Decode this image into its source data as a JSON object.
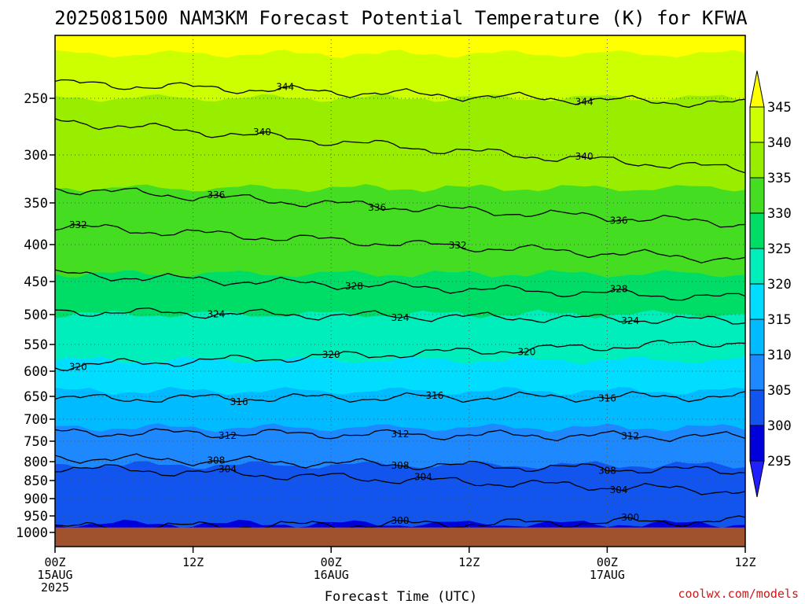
{
  "header": {
    "title": "2025081500 NAM3KM Forecast Potential Temperature (K) for KFWA"
  },
  "footer": {
    "credit": "coolwx.com/models"
  },
  "chart_data": {
    "type": "heatmap",
    "title": "2025081500 NAM3KM Forecast Potential Temperature (K) for KFWA",
    "xlabel": "Forecast Time (UTC)",
    "ylabel": "",
    "x_ticks": [
      {
        "hour": 0,
        "label": "00Z",
        "sub1": "15AUG",
        "sub2": "2025"
      },
      {
        "hour": 12,
        "label": "12Z",
        "sub1": "",
        "sub2": ""
      },
      {
        "hour": 24,
        "label": "00Z",
        "sub1": "16AUG",
        "sub2": ""
      },
      {
        "hour": 36,
        "label": "12Z",
        "sub1": "",
        "sub2": ""
      },
      {
        "hour": 48,
        "label": "00Z",
        "sub1": "17AUG",
        "sub2": ""
      },
      {
        "hour": 60,
        "label": "12Z",
        "sub1": "",
        "sub2": ""
      }
    ],
    "xlim": [
      0,
      60
    ],
    "y_ticks": [
      "250",
      "300",
      "350",
      "400",
      "450",
      "500",
      "550",
      "600",
      "650",
      "700",
      "750",
      "800",
      "850",
      "900",
      "950",
      "1000"
    ],
    "y_tick_values": [
      250,
      300,
      350,
      400,
      450,
      500,
      550,
      600,
      650,
      700,
      750,
      800,
      850,
      900,
      950,
      1000
    ],
    "ylim": [
      200,
      1000
    ],
    "ground_pressure": 985,
    "colorbar": {
      "levels": [
        "345",
        "340",
        "335",
        "330",
        "325",
        "320",
        "315",
        "310",
        "305",
        "300",
        "295"
      ],
      "colors": [
        "#ffff00",
        "#ccff00",
        "#99ee00",
        "#44dd22",
        "#00dd66",
        "#00eebb",
        "#00ddff",
        "#00bbff",
        "#1e88ff",
        "#1155ee",
        "#0000dd",
        "#2020ff"
      ]
    },
    "bands": [
      {
        "top": 200,
        "color": "#ffff00"
      },
      {
        "top": 215,
        "color": "#ccff00"
      },
      {
        "top": 250,
        "color": "#99ee00"
      },
      {
        "top": 335,
        "color": "#44dd22"
      },
      {
        "top": 440,
        "color": "#00dd66"
      },
      {
        "top": 500,
        "color": "#00eebb"
      },
      {
        "top": 580,
        "color": "#00ddff"
      },
      {
        "top": 640,
        "color": "#00bbff"
      },
      {
        "top": 720,
        "color": "#1e88ff"
      },
      {
        "top": 810,
        "color": "#1155ee"
      },
      {
        "top": 975,
        "color": "#0000dd"
      }
    ],
    "contours": [
      {
        "value": "344",
        "p_start": 238,
        "p_end": 255,
        "labels": [
          {
            "hour": 20,
            "text": "344"
          },
          {
            "hour": 46,
            "text": "344"
          }
        ]
      },
      {
        "value": "340",
        "p_start": 270,
        "p_end": 315,
        "labels": [
          {
            "hour": 18,
            "text": "340"
          },
          {
            "hour": 46,
            "text": "340"
          }
        ]
      },
      {
        "value": "336",
        "p_start": 335,
        "p_end": 375,
        "labels": [
          {
            "hour": 14,
            "text": "336"
          },
          {
            "hour": 28,
            "text": "336"
          },
          {
            "hour": 49,
            "text": "336"
          }
        ]
      },
      {
        "value": "332",
        "p_start": 378,
        "p_end": 420,
        "labels": [
          {
            "hour": 2,
            "text": "332"
          },
          {
            "hour": 35,
            "text": "332"
          }
        ]
      },
      {
        "value": "328",
        "p_start": 440,
        "p_end": 475,
        "labels": [
          {
            "hour": 26,
            "text": "328"
          },
          {
            "hour": 49,
            "text": "328"
          }
        ]
      },
      {
        "value": "324",
        "p_start": 495,
        "p_end": 510,
        "labels": [
          {
            "hour": 14,
            "text": "324"
          },
          {
            "hour": 30,
            "text": "324"
          },
          {
            "hour": 50,
            "text": "324"
          }
        ]
      },
      {
        "value": "320",
        "p_start": 590,
        "p_end": 545,
        "labels": [
          {
            "hour": 2,
            "text": "320"
          },
          {
            "hour": 24,
            "text": "320"
          },
          {
            "hour": 41,
            "text": "320"
          }
        ]
      },
      {
        "value": "316",
        "p_start": 655,
        "p_end": 650,
        "labels": [
          {
            "hour": 16,
            "text": "316"
          },
          {
            "hour": 33,
            "text": "316"
          },
          {
            "hour": 48,
            "text": "316"
          }
        ]
      },
      {
        "value": "312",
        "p_start": 730,
        "p_end": 740,
        "labels": [
          {
            "hour": 15,
            "text": "312"
          },
          {
            "hour": 30,
            "text": "312"
          },
          {
            "hour": 50,
            "text": "312"
          }
        ]
      },
      {
        "value": "308",
        "p_start": 790,
        "p_end": 825,
        "labels": [
          {
            "hour": 14,
            "text": "308"
          },
          {
            "hour": 30,
            "text": "308"
          },
          {
            "hour": 48,
            "text": "308"
          }
        ]
      },
      {
        "value": "304",
        "p_start": 815,
        "p_end": 880,
        "labels": [
          {
            "hour": 15,
            "text": "304"
          },
          {
            "hour": 32,
            "text": "304"
          },
          {
            "hour": 49,
            "text": "304"
          }
        ]
      },
      {
        "value": "300",
        "p_start": 985,
        "p_end": 965,
        "labels": [
          {
            "hour": 30,
            "text": "300"
          },
          {
            "hour": 50,
            "text": "300"
          }
        ]
      }
    ]
  }
}
